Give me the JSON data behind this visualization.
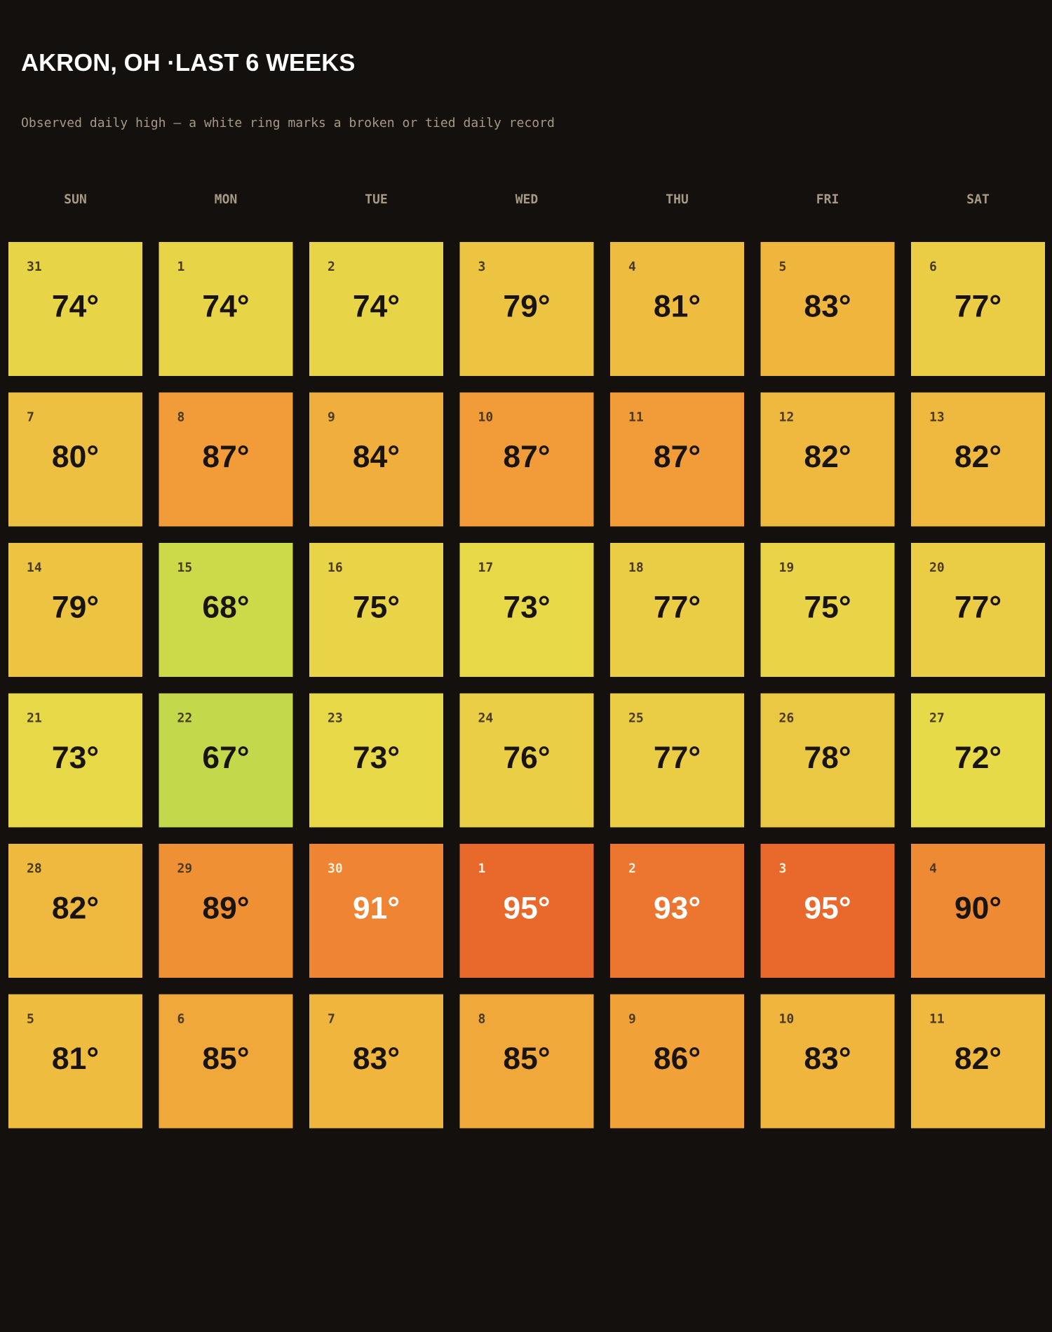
{
  "chart_data": {
    "type": "heatmap",
    "title": "AKRON, OH ·LAST 6 WEEKS",
    "subtitle": "Observed daily high — a white ring marks a broken or tied daily record",
    "categories": [
      "SUN",
      "MON",
      "TUE",
      "WED",
      "THU",
      "FRI",
      "SAT"
    ],
    "y_categories": [
      null,
      null,
      null,
      null,
      null,
      null
    ],
    "cells": [
      [
        74,
        74,
        74,
        79,
        81,
        83,
        77
      ],
      [
        80,
        87,
        84,
        87,
        87,
        82,
        82
      ],
      [
        79,
        68,
        75,
        73,
        77,
        75,
        77
      ],
      [
        73,
        67,
        73,
        76,
        77,
        78,
        72
      ],
      [
        82,
        89,
        91,
        95,
        93,
        95,
        90
      ],
      [
        81,
        85,
        83,
        85,
        86,
        83,
        82
      ]
    ],
    "cell_labels": [
      [
        "74°",
        "74°",
        "74°",
        "79°",
        "81°",
        "83°",
        "77°"
      ],
      [
        "80°",
        "87°",
        "84°",
        "87°",
        "87°",
        "82°",
        "82°"
      ],
      [
        "79°",
        "68°",
        "75°",
        "73°",
        "77°",
        "75°",
        "77°"
      ],
      [
        "73°",
        "67°",
        "73°",
        "76°",
        "77°",
        "78°",
        "72°"
      ],
      [
        "82°",
        "89°",
        "91°",
        "95°",
        "93°",
        "95°",
        "90°"
      ],
      [
        "81°",
        "85°",
        "83°",
        "85°",
        "86°",
        "83°",
        "82°"
      ]
    ],
    "annotations": [
      "31",
      "1",
      "2",
      "3",
      "4",
      "5",
      "6",
      "7",
      "8",
      "9",
      "10",
      "11",
      "12",
      "13",
      "14",
      "15",
      "16",
      "17",
      "18",
      "19",
      "20",
      "21",
      "22",
      "23",
      "24",
      "25",
      "26",
      "27",
      "28",
      "29",
      "30",
      "1",
      "2",
      "3",
      "4",
      "5",
      "6",
      "7",
      "8",
      "9",
      "10",
      "11"
    ]
  }
}
